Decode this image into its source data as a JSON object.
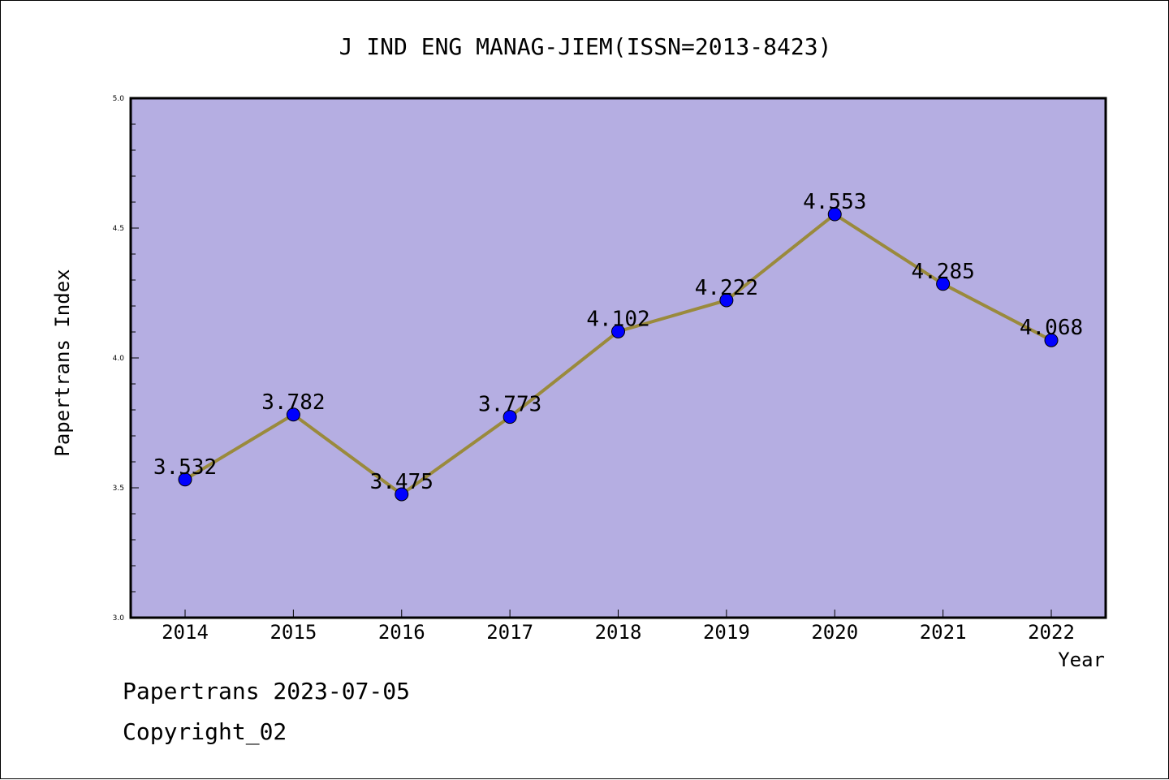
{
  "chart_data": {
    "type": "line",
    "title": "J IND ENG MANAG-JIEM(ISSN=2013-8423)",
    "xlabel": "Year",
    "ylabel": "Papertrans Index",
    "categories": [
      "2014",
      "2015",
      "2016",
      "2017",
      "2018",
      "2019",
      "2020",
      "2021",
      "2022"
    ],
    "values": [
      3.532,
      3.782,
      3.475,
      3.773,
      4.102,
      4.222,
      4.553,
      4.285,
      4.068
    ],
    "data_labels": [
      "3.532",
      "3.782",
      "3.475",
      "3.773",
      "4.102",
      "4.222",
      "4.553",
      "4.285",
      "4.068"
    ],
    "ylim": [
      3.0,
      5.0
    ],
    "yticks": [
      "3.0",
      "3.5",
      "4.0",
      "4.5",
      "5.0"
    ],
    "grid": false,
    "colors": {
      "plot_background": "#b5aee2",
      "line": "#9a8a3c",
      "marker": "#0000ff"
    }
  },
  "footer": {
    "line1": "Papertrans 2023-07-05",
    "line2": "Copyright_02"
  }
}
